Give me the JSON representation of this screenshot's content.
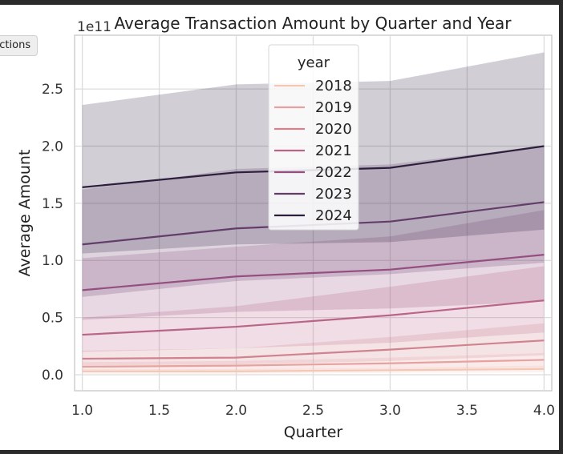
{
  "tooltip": {
    "label": "Edit actions"
  },
  "chart_data": {
    "type": "line",
    "title": "Average Transaction Amount by Quarter and Year",
    "xlabel": "Quarter",
    "ylabel": "Average Amount",
    "y_offset_label": "1e11",
    "xlim": [
      0.95,
      4.05
    ],
    "ylim": [
      -0.14,
      2.97
    ],
    "x_ticks": [
      "1.0",
      "1.5",
      "2.0",
      "2.5",
      "3.0",
      "3.5",
      "4.0"
    ],
    "y_ticks": [
      "0.0",
      "0.5",
      "1.0",
      "1.5",
      "2.0",
      "2.5"
    ],
    "grid": true,
    "legend_title": "year",
    "legend_position": "top-center",
    "x": [
      1,
      2,
      3,
      4
    ],
    "series": [
      {
        "name": "2018",
        "color": "#f4c6b4",
        "values": [
          0.03,
          0.03,
          0.04,
          0.05
        ],
        "lower": [
          0.01,
          0.01,
          0.015,
          0.02
        ],
        "upper": [
          0.05,
          0.05,
          0.06,
          0.08
        ]
      },
      {
        "name": "2019",
        "color": "#e6a2a0",
        "values": [
          0.07,
          0.08,
          0.1,
          0.13
        ],
        "lower": [
          0.04,
          0.04,
          0.05,
          0.06
        ],
        "upper": [
          0.11,
          0.12,
          0.15,
          0.19
        ]
      },
      {
        "name": "2020",
        "color": "#d1828f",
        "values": [
          0.14,
          0.15,
          0.22,
          0.3
        ],
        "lower": [
          0.08,
          0.09,
          0.12,
          0.17
        ],
        "upper": [
          0.21,
          0.23,
          0.33,
          0.45
        ]
      },
      {
        "name": "2021",
        "color": "#b96587",
        "values": [
          0.35,
          0.42,
          0.52,
          0.65
        ],
        "lower": [
          0.2,
          0.23,
          0.28,
          0.37
        ],
        "upper": [
          0.5,
          0.6,
          0.77,
          0.95
        ]
      },
      {
        "name": "2022",
        "color": "#944f80",
        "values": [
          0.74,
          0.86,
          0.92,
          1.05
        ],
        "lower": [
          0.48,
          0.55,
          0.58,
          0.64
        ],
        "upper": [
          1.02,
          1.12,
          1.21,
          1.44
        ]
      },
      {
        "name": "2023",
        "color": "#643c6a",
        "values": [
          1.14,
          1.28,
          1.34,
          1.51
        ],
        "lower": [
          0.68,
          0.82,
          0.88,
          0.98
        ],
        "upper": [
          1.62,
          1.8,
          1.84,
          2.0
        ]
      },
      {
        "name": "2024",
        "color": "#2d1e3e",
        "values": [
          1.64,
          1.77,
          1.81,
          2.0
        ],
        "lower": [
          1.06,
          1.14,
          1.16,
          1.27
        ],
        "upper": [
          2.36,
          2.54,
          2.57,
          2.82
        ]
      }
    ]
  }
}
